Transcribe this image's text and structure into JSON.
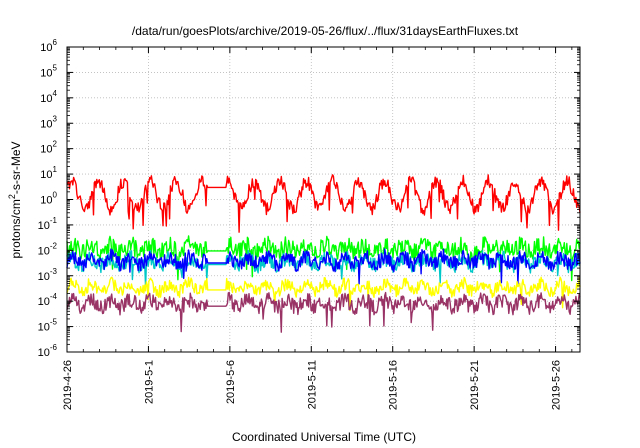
{
  "chart_data": {
    "type": "line",
    "title": "/data/run/goesPlots/archive/2019-05-26/flux/../flux/31daysEarthFluxes.txt",
    "xlabel": "Coordinated Universal Time (UTC)",
    "ylabel_parts": [
      "protons/cm",
      "2",
      "-s-sr-MeV"
    ],
    "ylabel": "protons/cm2-s-sr-MeV",
    "yscale": "log",
    "ylim_exp": [
      -6,
      6
    ],
    "y_tick_labels": [
      {
        "base": "10",
        "exp": "-6"
      },
      {
        "base": "10",
        "exp": "-5"
      },
      {
        "base": "10",
        "exp": "-4"
      },
      {
        "base": "10",
        "exp": "-3"
      },
      {
        "base": "10",
        "exp": "-2"
      },
      {
        "base": "10",
        "exp": "-1"
      },
      {
        "base": "10",
        "exp": "0"
      },
      {
        "base": "10",
        "exp": "1"
      },
      {
        "base": "10",
        "exp": "2"
      },
      {
        "base": "10",
        "exp": "3"
      },
      {
        "base": "10",
        "exp": "4"
      },
      {
        "base": "10",
        "exp": "5"
      },
      {
        "base": "10",
        "exp": "6"
      }
    ],
    "x_ticks": [
      "2019-4-26",
      "2019-5-1",
      "2019-5-6",
      "2019-5-11",
      "2019-5-16",
      "2019-5-21",
      "2019-5-26"
    ],
    "x_range_days": [
      0,
      31.5
    ],
    "data_gap_days": [
      8.6,
      9.8
    ],
    "grid": true,
    "series": [
      {
        "color": "#ff0000",
        "median": 1.5,
        "spread_decades": 0.55,
        "periodic": true
      },
      {
        "color": "#00ff00",
        "median": 0.012,
        "spread_decades": 0.35,
        "periodic": false
      },
      {
        "color": "#00c8c8",
        "median": 0.0035,
        "spread_decades": 0.3,
        "periodic": false
      },
      {
        "color": "#0000ff",
        "median": 0.004,
        "spread_decades": 0.3,
        "periodic": false
      },
      {
        "color": "#ffff00",
        "median": 0.00035,
        "spread_decades": 0.25,
        "periodic": false
      },
      {
        "color": "#993366",
        "median": 8e-05,
        "spread_decades": 0.3,
        "periodic": false
      }
    ]
  }
}
